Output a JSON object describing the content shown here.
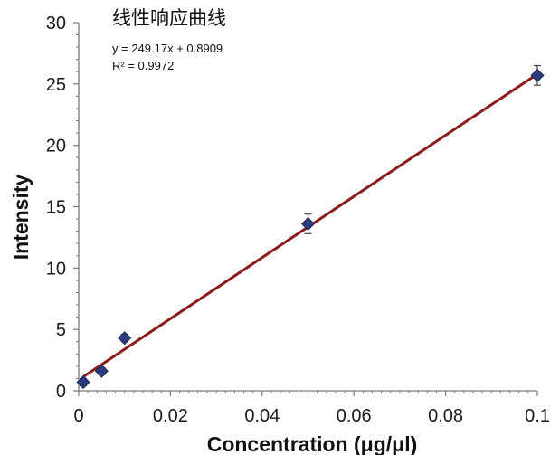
{
  "chart_data": {
    "type": "scatter",
    "title": "线性响应曲线",
    "xlabel": "Concentration (μg/μl)",
    "ylabel": "Intensity",
    "xlim": [
      0,
      0.1
    ],
    "ylim": [
      0,
      30
    ],
    "x_ticks": [
      "0",
      "0.02",
      "0.04",
      "0.06",
      "0.08",
      "0.1"
    ],
    "y_ticks": [
      "0",
      "5",
      "10",
      "15",
      "20",
      "25",
      "30"
    ],
    "x_tick_values": [
      0,
      0.02,
      0.04,
      0.06,
      0.08,
      0.1
    ],
    "y_tick_values": [
      0,
      5,
      10,
      15,
      20,
      25,
      30
    ],
    "grid": false,
    "series": [
      {
        "marker": "diamond",
        "color": "#2b3a7a",
        "x": [
          0.001,
          0.005,
          0.01,
          0.05,
          0.1
        ],
        "y": [
          0.7,
          1.6,
          4.3,
          13.6,
          25.7
        ],
        "y_err": [
          0.3,
          0.3,
          0.3,
          0.8,
          0.8
        ]
      }
    ],
    "trendline": {
      "type": "linear",
      "slope": 249.17,
      "intercept": 0.8909,
      "color": "#8b1c1c",
      "equation": "y = 249.17x + 0.8909",
      "r_squared": "R² = 0.9972"
    }
  }
}
